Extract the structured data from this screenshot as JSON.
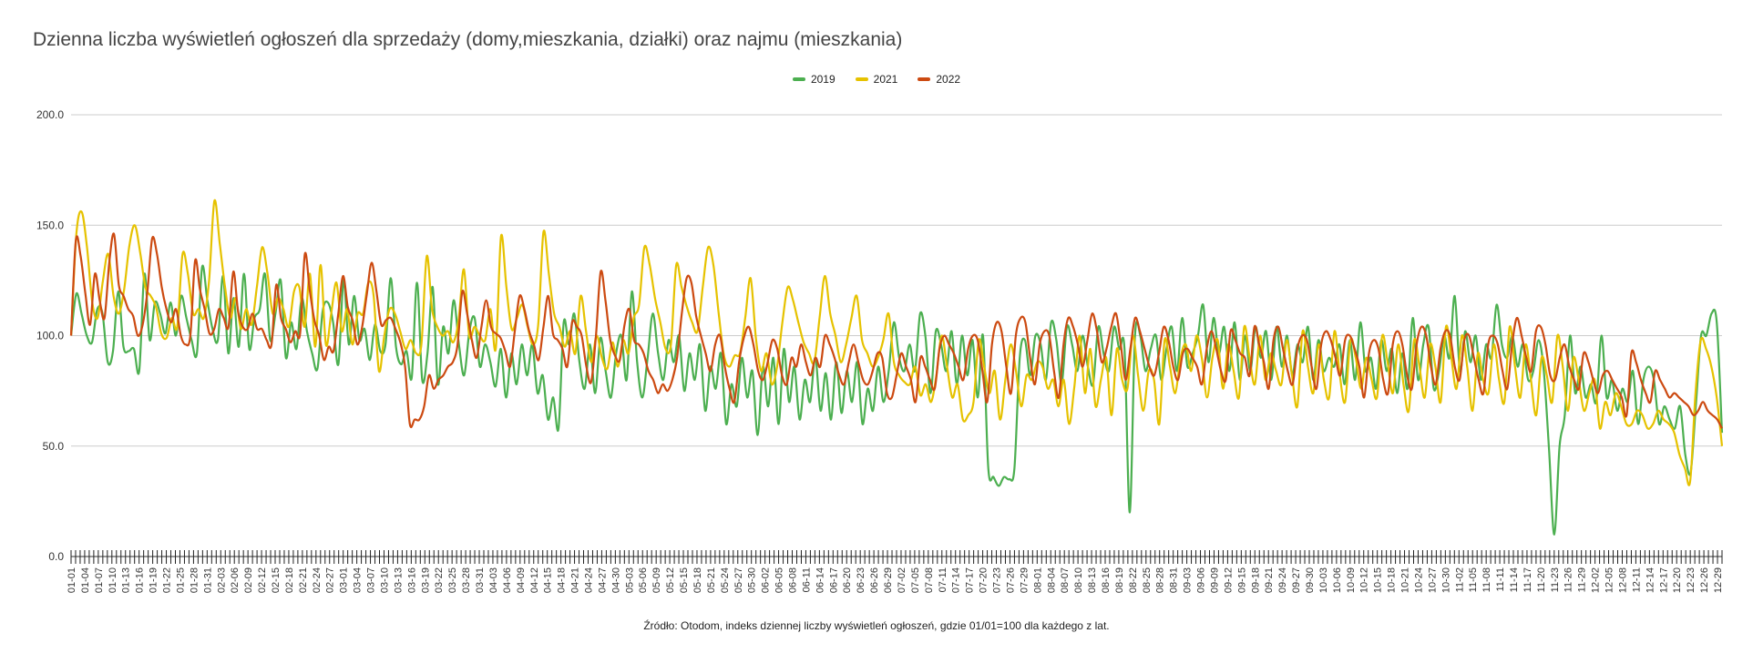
{
  "chart_data": {
    "type": "line",
    "title": "Dzienna liczba wyświetleń ogłoszeń dla sprzedaży (domy,mieszkania, działki) oraz najmu (mieszkania)",
    "source": "Źródło: Otodom, indeks dziennej liczby wyświetleń ogłoszeń, gdzie 01/01=100 dla każdego z lat.",
    "ylim": [
      0,
      200
    ],
    "yticks": [
      "0.0",
      "50.0",
      "100.0",
      "150.0",
      "200.0"
    ],
    "ytick_values": [
      0,
      50,
      100,
      150,
      200
    ],
    "grid": true,
    "legend_position": "top-center",
    "x_ticks": [
      "01-01",
      "01-04",
      "01-07",
      "01-10",
      "01-13",
      "01-16",
      "01-19",
      "01-22",
      "01-25",
      "01-28",
      "01-31",
      "02-03",
      "02-06",
      "02-09",
      "02-12",
      "02-15",
      "02-18",
      "02-21",
      "02-24",
      "02-27",
      "03-01",
      "03-04",
      "03-07",
      "03-10",
      "03-13",
      "03-16",
      "03-19",
      "03-22",
      "03-25",
      "03-28",
      "03-31",
      "04-03",
      "04-06",
      "04-09",
      "04-12",
      "04-15",
      "04-18",
      "04-21",
      "04-24",
      "04-27",
      "04-30",
      "05-03",
      "05-06",
      "05-09",
      "05-12",
      "05-15",
      "05-18",
      "05-21",
      "05-24",
      "05-27",
      "05-30",
      "06-02",
      "06-05",
      "06-08",
      "06-11",
      "06-14",
      "06-17",
      "06-20",
      "06-23",
      "06-26",
      "06-29",
      "07-02",
      "07-05",
      "07-08",
      "07-11",
      "07-14",
      "07-17",
      "07-20",
      "07-23",
      "07-26",
      "07-29",
      "08-01",
      "08-04",
      "08-07",
      "08-10",
      "08-13",
      "08-16",
      "08-19",
      "08-22",
      "08-25",
      "08-28",
      "08-31",
      "09-03",
      "09-06",
      "09-09",
      "09-12",
      "09-15",
      "09-18",
      "09-21",
      "09-24",
      "09-27",
      "09-30",
      "10-03",
      "10-06",
      "10-09",
      "10-12",
      "10-15",
      "10-18",
      "10-21",
      "10-24",
      "10-27",
      "10-30",
      "11-02",
      "11-05",
      "11-08",
      "11-11",
      "11-14",
      "11-17",
      "11-20",
      "11-23",
      "11-26",
      "11-29",
      "12-02",
      "12-05",
      "12-08",
      "12-11",
      "12-14",
      "12-17",
      "12-20",
      "12-23",
      "12-26",
      "12-29"
    ],
    "series": [
      {
        "name": "2019",
        "color": "#4caf50",
        "values": [
          100,
          119,
          110,
          100,
          97,
          112,
          110,
          88,
          93,
          120,
          95,
          93,
          94,
          84,
          128,
          98,
          115,
          110,
          101,
          115,
          100,
          118,
          108,
          98,
          92,
          131,
          116,
          103,
          98,
          127,
          92,
          117,
          95,
          128,
          94,
          108,
          112,
          128,
          98,
          110,
          125,
          90,
          106,
          94,
          117,
          102,
          92,
          85,
          111,
          115,
          106,
          87,
          125,
          96,
          118,
          98,
          103,
          89,
          105,
          93,
          96,
          126,
          95,
          87,
          93,
          81,
          124,
          80,
          92,
          122,
          78,
          104,
          92,
          116,
          96,
          82,
          102,
          108,
          86,
          96,
          88,
          77,
          94,
          72,
          92,
          78,
          96,
          82,
          96,
          74,
          82,
          62,
          72,
          58,
          106,
          96,
          110,
          88,
          76,
          96,
          74,
          99,
          84,
          72,
          92,
          100,
          80,
          120,
          88,
          72,
          90,
          110,
          92,
          80,
          98,
          88,
          100,
          75,
          92,
          80,
          96,
          66,
          86,
          76,
          92,
          60,
          78,
          68,
          90,
          72,
          84,
          55,
          86,
          68,
          90,
          60,
          94,
          70,
          86,
          62,
          80,
          70,
          90,
          66,
          83,
          62,
          88,
          65,
          84,
          70,
          88,
          60,
          76,
          66,
          86,
          70,
          84,
          106,
          90,
          84,
          96,
          84,
          110,
          100,
          74,
          102,
          96,
          84,
          102,
          78,
          100,
          82,
          98,
          72,
          100,
          40,
          36,
          32,
          36,
          35,
          40,
          90,
          98,
          82,
          100,
          96,
          80,
          106,
          98,
          78,
          104,
          96,
          84,
          100,
          86,
          78,
          104,
          92,
          84,
          104,
          94,
          94,
          20,
          100,
          100,
          84,
          94,
          100,
          80,
          94,
          104,
          84,
          108,
          86,
          92,
          100,
          114,
          88,
          108,
          92,
          104,
          84,
          106,
          80,
          100,
          84,
          104,
          90,
          102,
          80,
          104,
          86,
          100,
          82,
          96,
          88,
          104,
          80,
          98,
          84,
          90,
          86,
          96,
          78,
          98,
          80,
          106,
          84,
          90,
          76,
          98,
          84,
          94,
          74,
          92,
          76,
          108,
          80,
          96,
          104,
          76,
          84,
          100,
          90,
          118,
          84,
          102,
          88,
          100,
          80,
          96,
          90,
          114,
          96,
          90,
          100,
          86,
          96,
          80,
          84,
          98,
          84,
          48,
          10,
          50,
          64,
          100,
          74,
          86,
          72,
          78,
          70,
          100,
          72,
          80,
          66,
          76,
          70,
          84,
          60,
          80,
          86,
          80,
          60,
          68,
          62,
          58,
          68,
          46,
          38,
          68,
          100,
          100,
          110,
          106,
          56
        ]
      },
      {
        "name": "2021",
        "color": "#e6c200",
        "values": [
          100,
          146,
          156,
          140,
          115,
          108,
          125,
          137,
          118,
          110,
          121,
          141,
          150,
          138,
          122,
          118,
          113,
          101,
          99,
          108,
          104,
          137,
          128,
          110,
          112,
          108,
          125,
          161,
          142,
          122,
          108,
          117,
          103,
          112,
          105,
          122,
          140,
          128,
          110,
          117,
          112,
          104,
          120,
          122,
          104,
          128,
          95,
          132,
          96,
          110,
          124,
          102,
          112,
          96,
          110,
          110,
          124,
          118,
          84,
          100,
          112,
          110,
          102,
          94,
          98,
          92,
          96,
          136,
          112,
          104,
          100,
          102,
          97,
          107,
          130,
          100,
          104,
          100,
          98,
          112,
          94,
          145,
          122,
          103,
          108,
          114,
          104,
          96,
          105,
          147,
          128,
          110,
          104,
          95,
          102,
          92,
          118,
          102,
          88,
          100,
          90,
          85,
          97,
          86,
          98,
          92,
          108,
          114,
          140,
          132,
          117,
          106,
          94,
          96,
          132,
          122,
          113,
          106,
          102,
          122,
          140,
          132,
          110,
          91,
          86,
          91,
          92,
          108,
          126,
          99,
          84,
          92,
          78,
          86,
          106,
          122,
          116,
          106,
          97,
          92,
          88,
          108,
          127,
          110,
          100,
          88,
          96,
          108,
          118,
          98,
          92,
          86,
          90,
          98,
          110,
          88,
          82,
          79,
          78,
          86,
          73,
          78,
          70,
          82,
          100,
          86,
          72,
          78,
          62,
          64,
          70,
          98,
          86,
          74,
          84,
          62,
          80,
          96,
          84,
          68,
          82,
          80,
          88,
          86,
          76,
          80,
          68,
          80,
          60,
          77,
          100,
          74,
          94,
          68,
          80,
          90,
          64,
          94,
          80,
          76,
          100,
          82,
          66,
          84,
          80,
          60,
          98,
          86,
          74,
          90,
          96,
          84,
          100,
          90,
          72,
          90,
          98,
          76,
          96,
          84,
          72,
          104,
          90,
          78,
          100,
          80,
          92,
          84,
          78,
          98,
          82,
          68,
          102,
          86,
          74,
          96,
          80,
          72,
          102,
          82,
          70,
          98,
          90,
          76,
          90,
          80,
          72,
          100,
          88,
          74,
          96,
          78,
          66,
          98,
          86,
          72,
          96,
          86,
          70,
          104,
          90,
          76,
          100,
          86,
          66,
          92,
          80,
          74,
          96,
          80,
          70,
          104,
          86,
          72,
          96,
          80,
          64,
          90,
          82,
          70,
          100,
          86,
          66,
          90,
          80,
          66,
          74,
          80,
          58,
          70,
          64,
          74,
          68,
          60,
          60,
          66,
          64,
          58,
          60,
          66,
          62,
          60,
          56,
          46,
          40,
          34,
          74,
          98,
          94,
          86,
          72,
          50
        ]
      },
      {
        "name": "2022",
        "color": "#cc4a11",
        "values": [
          100,
          143,
          136,
          119,
          105,
          128,
          116,
          108,
          133,
          146,
          123,
          118,
          112,
          109,
          100,
          105,
          120,
          144,
          137,
          122,
          112,
          106,
          112,
          100,
          96,
          100,
          134,
          121,
          112,
          101,
          103,
          112,
          108,
          104,
          129,
          111,
          104,
          103,
          110,
          103,
          103,
          98,
          96,
          123,
          108,
          103,
          97,
          102,
          101,
          137,
          121,
          107,
          100,
          89,
          95,
          93,
          110,
          127,
          113,
          107,
          96,
          104,
          119,
          133,
          120,
          105,
          107,
          108,
          103,
          97,
          86,
          60,
          62,
          62,
          68,
          82,
          76,
          80,
          82,
          86,
          88,
          96,
          120,
          110,
          98,
          90,
          104,
          116,
          104,
          101,
          99,
          93,
          86,
          102,
          118,
          112,
          102,
          96,
          89,
          104,
          118,
          101,
          98,
          94,
          86,
          106,
          104,
          100,
          86,
          79,
          100,
          129,
          116,
          98,
          91,
          89,
          105,
          112,
          98,
          96,
          92,
          84,
          80,
          74,
          78,
          75,
          80,
          90,
          110,
          126,
          124,
          109,
          100,
          92,
          84,
          96,
          100,
          86,
          76,
          70,
          88,
          99,
          104,
          96,
          84,
          80,
          88,
          98,
          94,
          82,
          78,
          90,
          86,
          96,
          88,
          82,
          90,
          86,
          100,
          96,
          90,
          82,
          78,
          88,
          96,
          88,
          80,
          78,
          84,
          92,
          90,
          74,
          72,
          82,
          92,
          86,
          80,
          70,
          90,
          86,
          80,
          76,
          94,
          100,
          96,
          92,
          86,
          80,
          94,
          100,
          98,
          84,
          70,
          96,
          106,
          102,
          86,
          74,
          100,
          108,
          106,
          90,
          78,
          96,
          102,
          100,
          84,
          72,
          96,
          108,
          104,
          96,
          86,
          98,
          110,
          102,
          88,
          94,
          104,
          110,
          96,
          80,
          94,
          108,
          102,
          94,
          86,
          82,
          92,
          104,
          98,
          86,
          80,
          92,
          94,
          90,
          86,
          78,
          94,
          102,
          94,
          84,
          80,
          102,
          98,
          92,
          90,
          82,
          104,
          96,
          88,
          76,
          98,
          104,
          94,
          84,
          78,
          94,
          100,
          98,
          86,
          76,
          96,
          102,
          98,
          90,
          82,
          98,
          100,
          94,
          86,
          72,
          92,
          98,
          94,
          80,
          74,
          96,
          102,
          96,
          82,
          76,
          96,
          104,
          100,
          86,
          78,
          94,
          102,
          100,
          86,
          80,
          98,
          100,
          90,
          80,
          74,
          96,
          100,
          96,
          84,
          76,
          96,
          108,
          100,
          90,
          84,
          102,
          104,
          96,
          82,
          80,
          90,
          96,
          86,
          80,
          76,
          92,
          88,
          80,
          74,
          82,
          84,
          80,
          76,
          72,
          64,
          92,
          88,
          80,
          74,
          70,
          84,
          80,
          76,
          72,
          74,
          72,
          70,
          68,
          64,
          66,
          70,
          66,
          64,
          62,
          58
        ]
      }
    ]
  }
}
